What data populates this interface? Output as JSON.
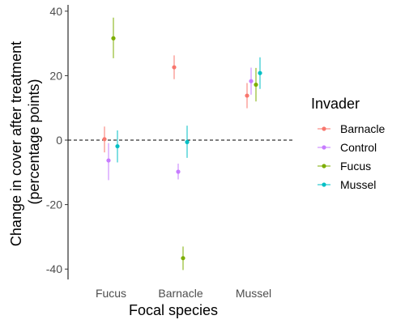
{
  "chart_data": {
    "type": "scatter",
    "subtype": "point-range",
    "xlabel": "Focal species",
    "ylabel": "Change in cover after treatment\n(percentage points)",
    "categories": [
      "Fucus",
      "Barnacle",
      "Mussel"
    ],
    "ylim": [
      -42,
      42
    ],
    "yticks": [
      -40,
      -20,
      0,
      20,
      40
    ],
    "reference_line": {
      "y": 0,
      "style": "dashed"
    },
    "legend": {
      "title": "Invader",
      "position": "right"
    },
    "grid": false,
    "series": [
      {
        "name": "Barnacle",
        "color": "#F8766D",
        "points": [
          {
            "x": "Fucus",
            "y": 0.3,
            "low": -3.8,
            "high": 4.2
          },
          {
            "x": "Barnacle",
            "y": 22.6,
            "low": 18.9,
            "high": 26.3
          },
          {
            "x": "Mussel",
            "y": 13.8,
            "low": 9.9,
            "high": 17.7
          }
        ]
      },
      {
        "name": "Control",
        "color": "#C77CFF",
        "points": [
          {
            "x": "Fucus",
            "y": -6.3,
            "low": -12.4,
            "high": -0.9
          },
          {
            "x": "Barnacle",
            "y": -9.8,
            "low": -12.2,
            "high": -7.3
          },
          {
            "x": "Mussel",
            "y": 18.3,
            "low": 14.1,
            "high": 22.5
          }
        ]
      },
      {
        "name": "Fucus",
        "color": "#7CAE00",
        "points": [
          {
            "x": "Fucus",
            "y": 31.6,
            "low": 25.4,
            "high": 38.0
          },
          {
            "x": "Barnacle",
            "y": -36.6,
            "low": -40.3,
            "high": -33.0
          },
          {
            "x": "Mussel",
            "y": 17.2,
            "low": 12.0,
            "high": 22.4
          }
        ]
      },
      {
        "name": "Mussel",
        "color": "#00BFC4",
        "points": [
          {
            "x": "Fucus",
            "y": -1.9,
            "low": -6.9,
            "high": 3.0
          },
          {
            "x": "Barnacle",
            "y": -0.6,
            "low": -5.5,
            "high": 4.5
          },
          {
            "x": "Mussel",
            "y": 20.8,
            "low": 15.9,
            "high": 25.7
          }
        ]
      }
    ]
  }
}
